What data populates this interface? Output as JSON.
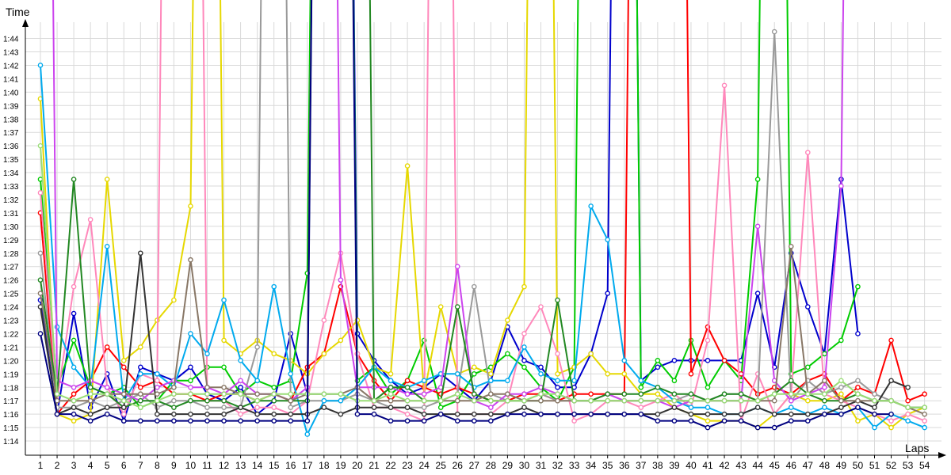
{
  "chart_data": {
    "type": "line",
    "title": "",
    "xlabel": "Laps",
    "ylabel": "Time",
    "x": [
      1,
      2,
      3,
      4,
      5,
      6,
      7,
      8,
      9,
      10,
      11,
      12,
      13,
      14,
      15,
      16,
      17,
      18,
      19,
      20,
      21,
      22,
      23,
      24,
      25,
      26,
      27,
      28,
      29,
      30,
      31,
      32,
      33,
      34,
      35,
      36,
      37,
      38,
      39,
      40,
      41,
      42,
      43,
      44,
      45,
      46,
      47,
      48,
      49,
      50,
      51,
      52,
      53,
      54
    ],
    "xlim": [
      1,
      54
    ],
    "ylim_seconds": [
      73,
      105
    ],
    "y_ticks": [
      "1:14",
      "1:15",
      "1:16",
      "1:17",
      "1:18",
      "1:19",
      "1:20",
      "1:21",
      "1:22",
      "1:23",
      "1:24",
      "1:25",
      "1:26",
      "1:27",
      "1:28",
      "1:29",
      "1:30",
      "1:31",
      "1:32",
      "1:33",
      "1:34",
      "1:35",
      "1:36",
      "1:37",
      "1:38",
      "1:39",
      "1:40",
      "1:41",
      "1:42",
      "1:43",
      "1:44"
    ],
    "grid": true,
    "legend": "none",
    "value_unit": "seconds",
    "series": [
      {
        "color": "#0000cc",
        "values": [
          84.5,
          76.0,
          83.5,
          76.5,
          79.0,
          75.5,
          79.5,
          79.0,
          78.5,
          79.5,
          77.5,
          77.0,
          78.0,
          76.0,
          77.0,
          82.0,
          77.5,
          200,
          200,
          82.0,
          80.0,
          78.5,
          77.5,
          78.0,
          79.0,
          78.0,
          77.0,
          78.5,
          82.5,
          80.0,
          79.5,
          78.0,
          78.0,
          80.5,
          85.0,
          200,
          78.5,
          79.5,
          80.0,
          80.0,
          80.0,
          80.0,
          80.0,
          85.0,
          79.5,
          88.0,
          84.0,
          80.5,
          93.5,
          82.0,
          null,
          null,
          null,
          null
        ]
      },
      {
        "color": "#00cc00",
        "values": [
          93.5,
          78.0,
          81.5,
          78.0,
          77.5,
          78.0,
          76.5,
          77.0,
          78.5,
          78.5,
          79.5,
          79.5,
          77.5,
          78.5,
          78.0,
          78.5,
          86.5,
          200,
          200,
          78.5,
          79.5,
          77.5,
          78.5,
          81.5,
          76.5,
          77.0,
          79.0,
          79.5,
          80.5,
          79.5,
          78.0,
          77.0,
          79.5,
          200,
          200,
          200,
          78.0,
          80.0,
          78.5,
          81.5,
          78.0,
          80.0,
          78.5,
          93.5,
          200,
          79.0,
          79.5,
          80.5,
          81.5,
          85.5,
          null,
          null,
          null,
          null
        ]
      },
      {
        "color": "#ff0000",
        "values": [
          91.0,
          76.0,
          77.5,
          78.5,
          81.0,
          79.5,
          78.0,
          78.5,
          77.5,
          77.5,
          77.0,
          77.5,
          77.5,
          77.0,
          77.5,
          77.0,
          79.5,
          80.5,
          85.5,
          80.5,
          78.5,
          77.0,
          78.5,
          78.0,
          77.5,
          78.0,
          77.5,
          77.0,
          77.0,
          77.5,
          77.5,
          77.0,
          77.5,
          77.5,
          77.5,
          77.5,
          200,
          200,
          200,
          79.0,
          82.5,
          80.0,
          79.0,
          77.5,
          78.0,
          77.5,
          78.5,
          79.0,
          77.0,
          78.0,
          77.5,
          81.5,
          77.0,
          77.5
        ]
      },
      {
        "color": "#e6d800",
        "values": [
          99.5,
          76.0,
          75.5,
          76.0,
          93.5,
          80.0,
          81.0,
          83.0,
          84.5,
          91.5,
          200,
          81.5,
          80.5,
          81.5,
          80.5,
          80.0,
          79.0,
          80.5,
          81.5,
          83.0,
          79.5,
          79.0,
          94.5,
          77.5,
          84.0,
          79.0,
          79.5,
          79.0,
          83.0,
          85.5,
          200,
          79.0,
          79.5,
          80.5,
          79.0,
          79.0,
          77.5,
          77.5,
          76.5,
          76.0,
          75.5,
          75.5,
          75.5,
          75.0,
          76.0,
          77.5,
          77.0,
          77.0,
          77.5,
          75.5,
          76.0,
          75.0,
          76.0,
          76.5
        ]
      },
      {
        "color": "#ff88bb",
        "values": [
          92.5,
          77.0,
          85.5,
          90.5,
          78.0,
          76.0,
          79.0,
          78.5,
          200,
          200,
          77.0,
          77.0,
          76.0,
          76.5,
          76.5,
          76.0,
          77.0,
          83.0,
          88.0,
          80.5,
          76.5,
          76.5,
          76.0,
          75.5,
          200,
          76.0,
          76.0,
          76.0,
          77.0,
          82.0,
          84.0,
          80.5,
          75.5,
          76.0,
          77.0,
          77.0,
          76.5,
          77.0,
          77.5,
          76.5,
          81.5,
          100.5,
          75.5,
          79.0,
          76.0,
          77.5,
          95.5,
          77.5,
          77.0,
          76.5,
          76.0,
          75.5,
          76.0,
          75.5
        ]
      },
      {
        "color": "#9a9a9a",
        "values": [
          88.0,
          76.5,
          76.5,
          77.0,
          76.5,
          77.0,
          77.5,
          76.5,
          77.0,
          77.0,
          76.5,
          76.5,
          76.5,
          81.0,
          200,
          76.5,
          77.0,
          77.0,
          77.0,
          77.5,
          77.0,
          76.5,
          76.5,
          76.5,
          77.0,
          77.5,
          85.5,
          77.5,
          77.0,
          77.0,
          77.5,
          77.0,
          77.0,
          77.0,
          77.5,
          77.0,
          77.0,
          77.0,
          77.0,
          77.5,
          77.0,
          77.5,
          77.5,
          77.0,
          104.5,
          77.0,
          78.5,
          77.5,
          78.0,
          78.5,
          77.5,
          77.0,
          76.5,
          76.5
        ]
      },
      {
        "color": "#00aaee",
        "values": [
          102.0,
          82.5,
          79.5,
          78.0,
          88.5,
          77.0,
          79.0,
          79.0,
          78.0,
          82.0,
          80.5,
          84.5,
          80.0,
          78.5,
          85.5,
          79.0,
          74.5,
          77.0,
          77.0,
          78.0,
          79.5,
          78.5,
          78.0,
          78.5,
          79.0,
          79.0,
          78.0,
          78.5,
          78.5,
          81.0,
          79.0,
          78.5,
          78.5,
          91.5,
          89.0,
          80.0,
          78.5,
          78.0,
          77.0,
          76.5,
          76.5,
          76.0,
          76.0,
          76.5,
          76.0,
          76.5,
          76.0,
          76.5,
          76.0,
          76.5,
          75.0,
          76.0,
          75.5,
          75.0
        ]
      },
      {
        "color": "#cc44ee",
        "values": [
          200,
          78.5,
          78.0,
          78.5,
          78.0,
          77.5,
          77.0,
          78.0,
          78.5,
          78.0,
          78.0,
          77.5,
          78.5,
          77.5,
          77.5,
          77.0,
          78.0,
          200,
          86.0,
          78.0,
          78.0,
          78.0,
          77.5,
          77.5,
          78.0,
          87.0,
          77.0,
          76.5,
          77.5,
          77.5,
          78.0,
          77.5,
          77.0,
          77.0,
          77.5,
          77.0,
          77.0,
          77.0,
          76.5,
          77.0,
          77.0,
          77.0,
          77.0,
          90.0,
          78.5,
          77.0,
          77.5,
          78.0,
          93.0,
          200,
          null,
          null,
          null,
          null
        ]
      },
      {
        "color": "#228822",
        "values": [
          86.0,
          77.5,
          93.5,
          78.0,
          77.5,
          76.5,
          77.0,
          77.0,
          76.5,
          77.0,
          77.0,
          77.0,
          76.5,
          77.0,
          77.0,
          77.0,
          77.0,
          200,
          200,
          200,
          77.0,
          78.0,
          78.0,
          77.0,
          77.0,
          84.0,
          77.5,
          77.0,
          77.0,
          77.0,
          77.0,
          84.5,
          77.0,
          77.0,
          77.5,
          77.5,
          77.5,
          78.0,
          77.5,
          77.5,
          77.0,
          77.5,
          77.5,
          77.0,
          77.5,
          78.5,
          77.5,
          77.0,
          77.0,
          77.5,
          77.0,
          77.0,
          76.5,
          76.5
        ]
      },
      {
        "color": "#333333",
        "values": [
          84.0,
          76.0,
          76.5,
          76.0,
          76.5,
          76.5,
          88.0,
          76.0,
          76.0,
          76.0,
          76.0,
          76.0,
          76.5,
          76.0,
          76.0,
          76.0,
          76.0,
          76.5,
          76.0,
          76.5,
          76.5,
          76.5,
          76.5,
          76.0,
          76.0,
          76.0,
          76.0,
          76.0,
          76.0,
          76.5,
          76.0,
          76.0,
          76.0,
          76.0,
          76.0,
          76.0,
          76.0,
          76.0,
          76.5,
          76.0,
          76.0,
          76.0,
          76.0,
          76.5,
          76.0,
          76.0,
          76.0,
          76.0,
          76.5,
          77.0,
          76.5,
          78.5,
          78.0,
          null
        ]
      },
      {
        "color": "#887766",
        "values": [
          85.0,
          77.0,
          77.0,
          77.0,
          77.5,
          77.5,
          77.5,
          77.5,
          78.0,
          87.5,
          78.0,
          78.0,
          77.5,
          77.5,
          77.5,
          77.0,
          77.5,
          77.5,
          77.5,
          78.0,
          77.0,
          77.0,
          77.0,
          77.0,
          77.0,
          77.0,
          77.0,
          77.5,
          77.5,
          77.0,
          77.0,
          77.0,
          77.0,
          77.0,
          77.0,
          77.0,
          77.0,
          77.0,
          77.0,
          77.0,
          77.0,
          77.0,
          77.0,
          77.0,
          77.0,
          88.5,
          77.5,
          78.5,
          77.0,
          77.0,
          77.0,
          77.0,
          76.5,
          76.0
        ]
      },
      {
        "color": "#99dd77",
        "values": [
          96.0,
          77.5,
          77.0,
          77.5,
          77.5,
          77.0,
          76.5,
          77.0,
          77.5,
          77.5,
          77.5,
          77.5,
          77.5,
          77.0,
          77.5,
          77.5,
          77.5,
          77.5,
          77.5,
          77.0,
          77.0,
          77.5,
          77.0,
          77.0,
          77.0,
          77.5,
          77.0,
          77.0,
          77.0,
          77.0,
          77.5,
          77.5,
          77.0,
          77.0,
          77.0,
          77.0,
          77.0,
          77.0,
          77.0,
          77.0,
          77.0,
          77.0,
          77.0,
          77.0,
          77.5,
          77.5,
          77.5,
          77.5,
          78.5,
          77.5,
          77.0,
          77.0,
          76.5,
          76.5
        ]
      },
      {
        "color": "#000080",
        "values": [
          82.0,
          76.0,
          76.0,
          75.5,
          76.0,
          75.5,
          75.5,
          75.5,
          75.5,
          75.5,
          75.5,
          75.5,
          75.5,
          75.5,
          75.5,
          75.5,
          75.5,
          200,
          200,
          76.0,
          76.0,
          75.5,
          75.5,
          75.5,
          76.0,
          75.5,
          75.5,
          75.5,
          76.0,
          76.0,
          76.0,
          76.0,
          76.0,
          76.0,
          76.0,
          76.0,
          76.0,
          75.5,
          75.5,
          75.5,
          75.0,
          75.5,
          75.5,
          75.0,
          75.0,
          75.5,
          75.5,
          76.0,
          76.0,
          76.5,
          76.0,
          76.0,
          null,
          null
        ]
      }
    ]
  }
}
